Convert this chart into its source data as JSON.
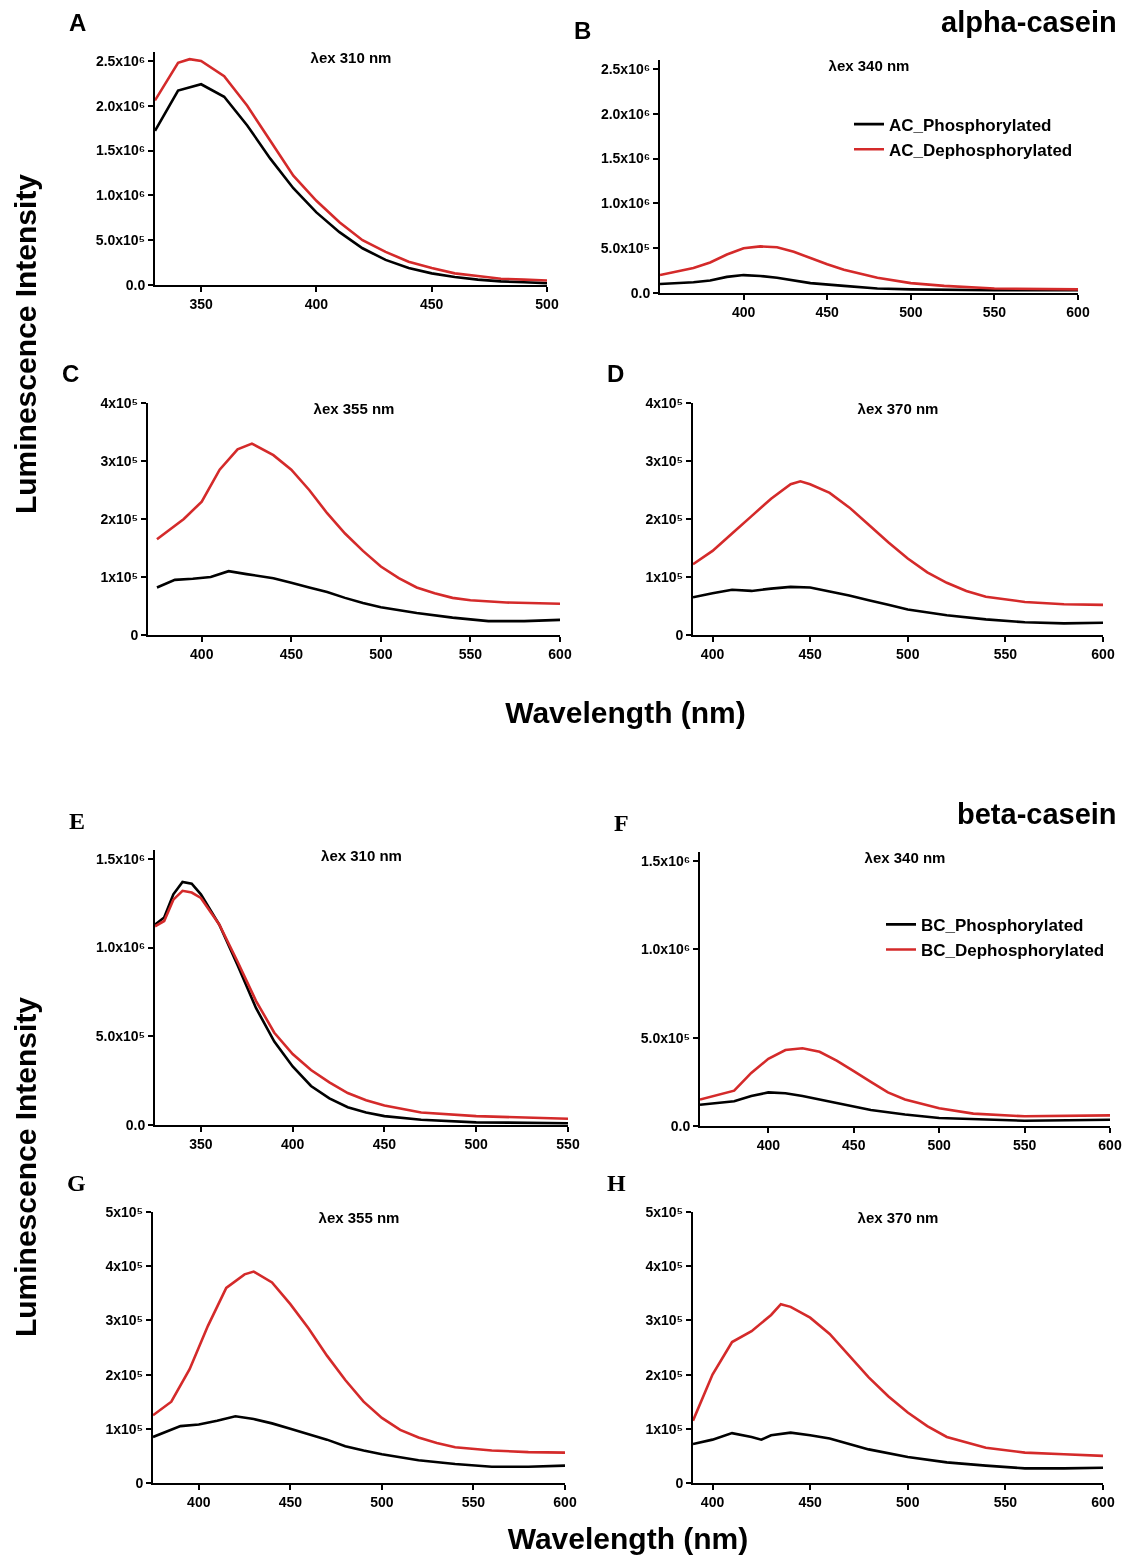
{
  "chart_data": [
    {
      "type": "line",
      "title": "λex 310 nm",
      "annotations": [
        "A"
      ],
      "ylabel": "Luminescence Intensity",
      "xlim": [
        330,
        500
      ],
      "ylim": [
        0,
        2600000
      ],
      "xticks": [
        350,
        400,
        450,
        500
      ],
      "yticks": [
        {
          "value": 0,
          "label": "0.0"
        },
        {
          "value": 500000,
          "label": "5.0x10⁵"
        },
        {
          "value": 1000000,
          "label": "1.0x10⁶"
        },
        {
          "value": 1500000,
          "label": "1.5x10⁶"
        },
        {
          "value": 2000000,
          "label": "2.0x10⁶"
        },
        {
          "value": 2500000,
          "label": "2.5x10⁶"
        }
      ],
      "grid": false,
      "legend": false,
      "series": [
        {
          "color": "#d42a2a",
          "x": [
            330,
            340,
            345,
            350,
            360,
            370,
            380,
            390,
            400,
            410,
            420,
            430,
            440,
            450,
            460,
            470,
            480,
            490,
            500
          ],
          "values": [
            2060000,
            2480000,
            2520000,
            2500000,
            2330000,
            2000000,
            1610000,
            1220000,
            940000,
            700000,
            500000,
            370000,
            260000,
            190000,
            130000,
            100000,
            70000,
            60000,
            50000
          ]
        },
        {
          "color": "#000000",
          "x": [
            330,
            340,
            350,
            360,
            370,
            380,
            390,
            400,
            410,
            420,
            430,
            440,
            450,
            460,
            470,
            480,
            490,
            500
          ],
          "values": [
            1720000,
            2170000,
            2240000,
            2100000,
            1780000,
            1410000,
            1080000,
            810000,
            590000,
            410000,
            280000,
            190000,
            130000,
            90000,
            60000,
            40000,
            30000,
            20000
          ]
        }
      ]
    },
    {
      "type": "line",
      "title": "λex 340 nm",
      "annotations": [
        "B",
        "alpha-casein"
      ],
      "xlim": [
        350,
        600
      ],
      "ylim": [
        0,
        2600000
      ],
      "xticks": [
        400,
        450,
        500,
        550,
        600
      ],
      "yticks": [
        {
          "value": 0,
          "label": "0.0"
        },
        {
          "value": 500000,
          "label": "5.0x10⁵"
        },
        {
          "value": 1000000,
          "label": "1.0x10⁶"
        },
        {
          "value": 1500000,
          "label": "1.5x10⁶"
        },
        {
          "value": 2000000,
          "label": "2.0x10⁶"
        },
        {
          "value": 2500000,
          "label": "2.5x10⁶"
        }
      ],
      "grid": false,
      "legend": "top right",
      "series": [
        {
          "name": "AC_Phosphorylated",
          "color": "#000000",
          "x": [
            350,
            370,
            380,
            390,
            400,
            410,
            420,
            440,
            460,
            480,
            500,
            550,
            600
          ],
          "values": [
            100000,
            120000,
            140000,
            180000,
            200000,
            190000,
            170000,
            110000,
            80000,
            50000,
            40000,
            30000,
            30000
          ]
        },
        {
          "name": "AC_Dephosphorylated",
          "color": "#d42a2a",
          "x": [
            350,
            370,
            380,
            390,
            400,
            410,
            420,
            430,
            440,
            450,
            460,
            480,
            500,
            520,
            550,
            600
          ],
          "values": [
            200000,
            280000,
            340000,
            430000,
            500000,
            520000,
            510000,
            460000,
            390000,
            320000,
            260000,
            170000,
            110000,
            80000,
            50000,
            40000
          ]
        }
      ]
    },
    {
      "type": "line",
      "title": "λex 355 nm",
      "annotations": [
        "C"
      ],
      "xlabel": "Wavelength (nm)",
      "xlim": [
        370,
        600
      ],
      "ylim": [
        0,
        400000
      ],
      "xticks": [
        400,
        450,
        500,
        550,
        600
      ],
      "yticks": [
        {
          "value": 0,
          "label": "0"
        },
        {
          "value": 100000,
          "label": "1x10⁵"
        },
        {
          "value": 200000,
          "label": "2x10⁵"
        },
        {
          "value": 300000,
          "label": "3x10⁵"
        },
        {
          "value": 400000,
          "label": "4x10⁵"
        }
      ],
      "grid": false,
      "legend": false,
      "series": [
        {
          "color": "#d42a2a",
          "x": [
            375,
            390,
            400,
            410,
            420,
            428,
            440,
            450,
            460,
            470,
            480,
            490,
            500,
            510,
            520,
            530,
            540,
            550,
            570,
            600
          ],
          "values": [
            165000,
            200000,
            230000,
            285000,
            320000,
            330000,
            310000,
            285000,
            250000,
            210000,
            175000,
            145000,
            118000,
            98000,
            82000,
            72000,
            64000,
            60000,
            56000,
            54000
          ]
        },
        {
          "color": "#000000",
          "x": [
            375,
            385,
            395,
            405,
            415,
            425,
            440,
            450,
            460,
            470,
            480,
            490,
            500,
            520,
            540,
            560,
            580,
            600
          ],
          "values": [
            82000,
            95000,
            97000,
            100000,
            110000,
            105000,
            98000,
            90000,
            82000,
            74000,
            64000,
            55000,
            48000,
            38000,
            30000,
            24000,
            24000,
            26000
          ]
        }
      ]
    },
    {
      "type": "line",
      "title": "λex 370 nm",
      "annotations": [
        "D"
      ],
      "xlim": [
        390,
        600
      ],
      "ylim": [
        0,
        400000
      ],
      "xticks": [
        400,
        450,
        500,
        550,
        600
      ],
      "yticks": [
        {
          "value": 0,
          "label": "0"
        },
        {
          "value": 100000,
          "label": "1x10⁵"
        },
        {
          "value": 200000,
          "label": "2x10⁵"
        },
        {
          "value": 300000,
          "label": "3x10⁵"
        },
        {
          "value": 400000,
          "label": "4x10⁵"
        }
      ],
      "grid": false,
      "legend": false,
      "series": [
        {
          "color": "#d42a2a",
          "x": [
            390,
            400,
            410,
            420,
            430,
            440,
            445,
            450,
            460,
            470,
            480,
            490,
            500,
            510,
            520,
            530,
            540,
            560,
            580,
            600
          ],
          "values": [
            122000,
            145000,
            175000,
            205000,
            235000,
            260000,
            265000,
            260000,
            245000,
            220000,
            190000,
            160000,
            132000,
            108000,
            90000,
            76000,
            66000,
            57000,
            53000,
            52000
          ]
        },
        {
          "color": "#000000",
          "x": [
            390,
            400,
            410,
            420,
            430,
            440,
            450,
            460,
            470,
            480,
            490,
            500,
            520,
            540,
            560,
            580,
            600
          ],
          "values": [
            65000,
            72000,
            78000,
            76000,
            80000,
            83000,
            82000,
            75000,
            68000,
            60000,
            52000,
            44000,
            34000,
            27000,
            22000,
            20000,
            21000
          ]
        }
      ]
    },
    {
      "type": "line",
      "title": "λex 310 nm",
      "annotations": [
        "E"
      ],
      "ylabel": "Luminescence Intensity",
      "xlim": [
        325,
        550
      ],
      "ylim": [
        0,
        1550000
      ],
      "xticks": [
        350,
        400,
        450,
        500,
        550
      ],
      "yticks": [
        {
          "value": 0,
          "label": "0.0"
        },
        {
          "value": 500000,
          "label": "5.0x10⁵"
        },
        {
          "value": 1000000,
          "label": "1.0x10⁶"
        },
        {
          "value": 1500000,
          "label": "1.5x10⁶"
        }
      ],
      "grid": false,
      "legend": false,
      "series": [
        {
          "color": "#000000",
          "x": [
            325,
            330,
            335,
            340,
            345,
            350,
            360,
            370,
            380,
            390,
            400,
            410,
            420,
            430,
            440,
            450,
            470,
            500,
            550
          ],
          "values": [
            1130000,
            1170000,
            1300000,
            1370000,
            1360000,
            1300000,
            1130000,
            900000,
            660000,
            470000,
            330000,
            220000,
            150000,
            100000,
            70000,
            50000,
            30000,
            15000,
            10000
          ]
        },
        {
          "color": "#d42a2a",
          "x": [
            325,
            330,
            335,
            340,
            345,
            350,
            360,
            370,
            380,
            390,
            400,
            410,
            420,
            430,
            440,
            450,
            470,
            500,
            550
          ],
          "values": [
            1120000,
            1150000,
            1270000,
            1320000,
            1310000,
            1280000,
            1130000,
            920000,
            700000,
            520000,
            400000,
            310000,
            240000,
            180000,
            140000,
            110000,
            70000,
            50000,
            35000
          ]
        }
      ]
    },
    {
      "type": "line",
      "title": "λex 340 nm",
      "annotations": [
        "F",
        "beta-casein"
      ],
      "xlim": [
        360,
        600
      ],
      "ylim": [
        0,
        1550000
      ],
      "xticks": [
        400,
        450,
        500,
        550,
        600
      ],
      "yticks": [
        {
          "value": 0,
          "label": "0.0"
        },
        {
          "value": 500000,
          "label": "5.0x10⁵"
        },
        {
          "value": 1000000,
          "label": "1.0x10⁶"
        },
        {
          "value": 1500000,
          "label": "1.5x10⁶"
        }
      ],
      "grid": false,
      "legend": "top right",
      "series": [
        {
          "name": "BC_Phosphorylated",
          "color": "#000000",
          "x": [
            360,
            380,
            390,
            400,
            410,
            420,
            440,
            460,
            480,
            500,
            550,
            600
          ],
          "values": [
            120000,
            140000,
            170000,
            190000,
            185000,
            170000,
            130000,
            90000,
            65000,
            45000,
            30000,
            35000
          ]
        },
        {
          "name": "BC_Dephosphorylated",
          "color": "#d42a2a",
          "x": [
            360,
            380,
            390,
            400,
            410,
            420,
            430,
            440,
            450,
            460,
            470,
            480,
            500,
            520,
            550,
            600
          ],
          "values": [
            150000,
            200000,
            300000,
            380000,
            430000,
            440000,
            420000,
            370000,
            310000,
            250000,
            190000,
            150000,
            100000,
            70000,
            55000,
            60000
          ]
        }
      ]
    },
    {
      "type": "line",
      "title": "λex 355 nm",
      "annotations": [
        "G"
      ],
      "xlabel": "Wavelength (nm)",
      "xlim": [
        375,
        600
      ],
      "ylim": [
        0,
        500000
      ],
      "xticks": [
        400,
        450,
        500,
        550,
        600
      ],
      "yticks": [
        {
          "value": 0,
          "label": "0"
        },
        {
          "value": 100000,
          "label": "1x10⁵"
        },
        {
          "value": 200000,
          "label": "2x10⁵"
        },
        {
          "value": 300000,
          "label": "3x10⁵"
        },
        {
          "value": 400000,
          "label": "4x10⁵"
        },
        {
          "value": 500000,
          "label": "5x10⁵"
        }
      ],
      "grid": false,
      "legend": false,
      "series": [
        {
          "color": "#d42a2a",
          "x": [
            375,
            385,
            395,
            405,
            415,
            425,
            430,
            440,
            450,
            460,
            470,
            480,
            490,
            500,
            510,
            520,
            530,
            540,
            560,
            580,
            600
          ],
          "values": [
            125000,
            150000,
            210000,
            290000,
            360000,
            385000,
            390000,
            370000,
            330000,
            285000,
            235000,
            190000,
            150000,
            120000,
            98000,
            84000,
            74000,
            66000,
            60000,
            57000,
            56000
          ]
        },
        {
          "color": "#000000",
          "x": [
            375,
            390,
            400,
            410,
            420,
            430,
            440,
            450,
            460,
            470,
            480,
            490,
            500,
            520,
            540,
            560,
            580,
            600
          ],
          "values": [
            85000,
            105000,
            108000,
            115000,
            123000,
            118000,
            110000,
            100000,
            90000,
            80000,
            68000,
            60000,
            53000,
            42000,
            35000,
            30000,
            30000,
            32000
          ]
        }
      ]
    },
    {
      "type": "line",
      "title": "λex 370 nm",
      "annotations": [
        "H"
      ],
      "xlim": [
        390,
        600
      ],
      "ylim": [
        0,
        500000
      ],
      "xticks": [
        400,
        450,
        500,
        550,
        600
      ],
      "yticks": [
        {
          "value": 0,
          "label": "0"
        },
        {
          "value": 100000,
          "label": "1x10⁵"
        },
        {
          "value": 200000,
          "label": "2x10⁵"
        },
        {
          "value": 300000,
          "label": "3x10⁵"
        },
        {
          "value": 400000,
          "label": "4x10⁵"
        },
        {
          "value": 500000,
          "label": "5x10⁵"
        }
      ],
      "grid": false,
      "legend": false,
      "series": [
        {
          "color": "#d42a2a",
          "x": [
            390,
            400,
            410,
            420,
            430,
            435,
            440,
            450,
            460,
            470,
            480,
            490,
            500,
            510,
            520,
            540,
            560,
            580,
            600
          ],
          "values": [
            115000,
            200000,
            260000,
            280000,
            310000,
            330000,
            325000,
            305000,
            275000,
            235000,
            195000,
            160000,
            130000,
            105000,
            85000,
            65000,
            56000,
            53000,
            50000
          ]
        },
        {
          "color": "#000000",
          "x": [
            390,
            400,
            410,
            420,
            425,
            430,
            440,
            450,
            460,
            470,
            480,
            500,
            520,
            540,
            560,
            580,
            600
          ],
          "values": [
            72000,
            80000,
            92000,
            85000,
            80000,
            88000,
            93000,
            88000,
            82000,
            72000,
            62000,
            48000,
            38000,
            32000,
            27000,
            27000,
            28000
          ]
        }
      ]
    }
  ]
}
